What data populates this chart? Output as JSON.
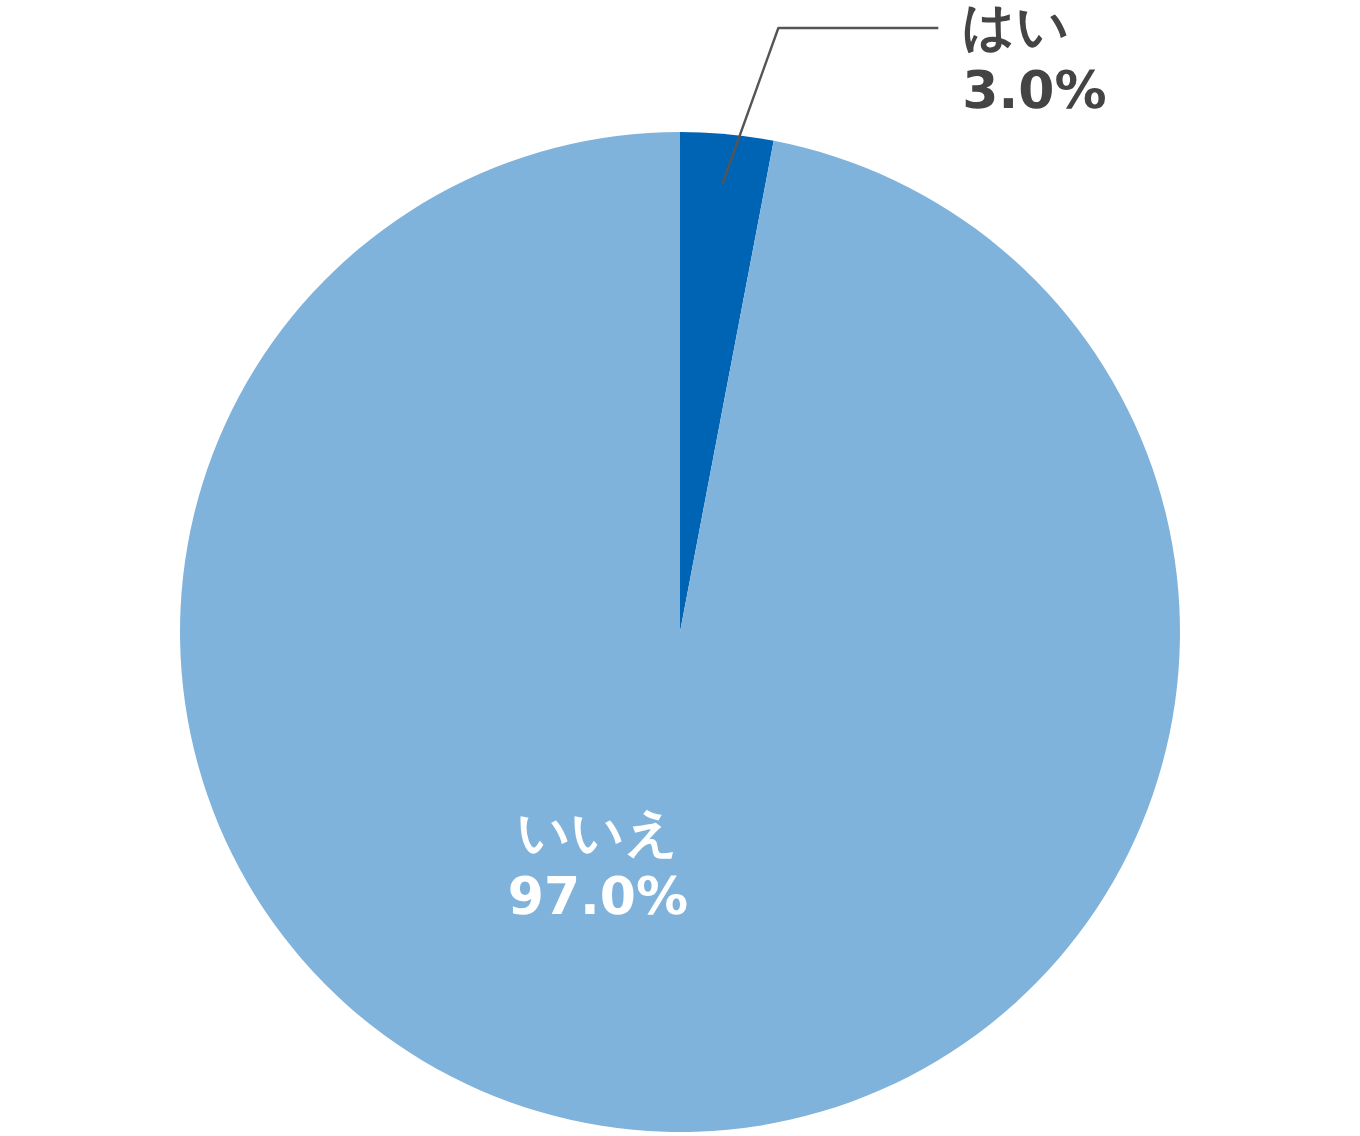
{
  "chart_data": {
    "type": "pie",
    "categories": [
      "はい",
      "いいえ"
    ],
    "values": [
      3.0,
      97.0
    ],
    "colors": [
      "#0064b4",
      "#80b3db"
    ],
    "value_labels": [
      "3.0%",
      "97.0%"
    ]
  }
}
